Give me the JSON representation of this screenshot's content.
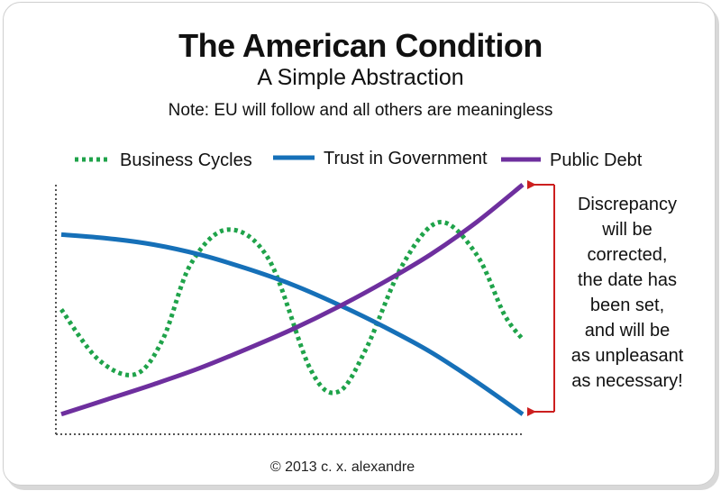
{
  "header": {
    "title": "The American Condition",
    "subtitle": "A Simple Abstraction",
    "note": "Note: EU will follow and all others are meaningless"
  },
  "footer": {
    "copyright": "© 2013 c. x. alexandre"
  },
  "colors": {
    "business_cycles": "#1fa34a",
    "trust_in_government": "#1670b8",
    "public_debt": "#6e2f9e",
    "bracket": "#cc1f1f",
    "axis": "#555555"
  },
  "chart_data": {
    "type": "line",
    "title": "The American Condition",
    "subtitle": "A Simple Abstraction",
    "xlabel": "",
    "ylabel": "",
    "xlim": [
      0,
      100
    ],
    "ylim": [
      0,
      100
    ],
    "grid": false,
    "legend_position": "top",
    "series": [
      {
        "name": "Business Cycles",
        "style": "dotted",
        "x": [
          0,
          8,
          16,
          22,
          28,
          36,
          45,
          54,
          60,
          66,
          74,
          82,
          90,
          96,
          100
        ],
        "y": [
          50,
          30,
          24,
          38,
          68,
          82,
          70,
          26,
          17,
          34,
          68,
          85,
          72,
          48,
          38
        ]
      },
      {
        "name": "Trust in Government",
        "style": "solid",
        "x": [
          0,
          10,
          20,
          30,
          40,
          50,
          60,
          70,
          80,
          90,
          100
        ],
        "y": [
          80,
          78.5,
          76,
          72,
          66.5,
          60,
          52,
          43,
          33,
          21,
          8
        ]
      },
      {
        "name": "Public Debt",
        "style": "solid",
        "x": [
          0,
          10,
          20,
          30,
          40,
          50,
          60,
          70,
          80,
          90,
          100
        ],
        "y": [
          8,
          14,
          20,
          26.5,
          34,
          42,
          51,
          61,
          72,
          85,
          100
        ]
      }
    ],
    "annotation": {
      "lines": [
        "Discrepancy",
        "will be",
        "corrected,",
        "the date has",
        "been set,",
        "and will be",
        "as unpleasant",
        "as necessary!"
      ]
    }
  }
}
